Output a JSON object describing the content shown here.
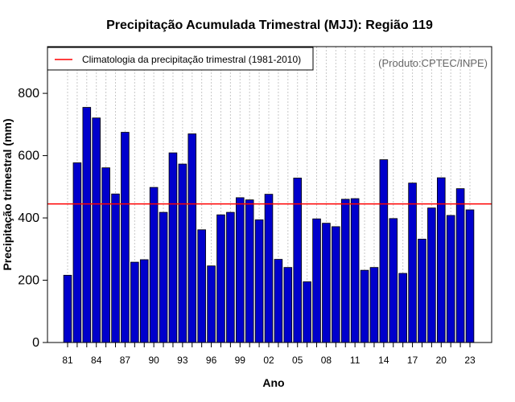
{
  "chart_data": {
    "type": "bar",
    "title": "Precipitação Acumulada Trimestral (MJJ): Região 119",
    "xlabel": "Ano",
    "ylabel": "Precipitação trimestral (mm)",
    "credit": "(Produto:CPTEC/INPE)",
    "legend": {
      "label": "Climatologia da precipitação trimestral (1981-2010)",
      "color": "#ff0000",
      "placement": "top-left"
    },
    "climatology": 445,
    "ylim": [
      0,
      950
    ],
    "yticks": [
      0,
      200,
      400,
      600,
      800
    ],
    "ytick_labels": [
      "0",
      "200",
      "400",
      "600",
      "800"
    ],
    "categories": [
      "1981",
      "1982",
      "1983",
      "1984",
      "1985",
      "1986",
      "1987",
      "1988",
      "1989",
      "1990",
      "1991",
      "1992",
      "1993",
      "1994",
      "1995",
      "1996",
      "1997",
      "1998",
      "1999",
      "2000",
      "2001",
      "2002",
      "2003",
      "2004",
      "2005",
      "2006",
      "2007",
      "2008",
      "2009",
      "2010",
      "2011",
      "2012",
      "2013",
      "2014",
      "2015",
      "2016",
      "2017",
      "2018",
      "2019",
      "2020",
      "2021",
      "2022",
      "2023"
    ],
    "xtick_every": 3,
    "xtick_labels": [
      "81",
      "84",
      "87",
      "90",
      "93",
      "96",
      "99",
      "02",
      "05",
      "08",
      "11",
      "14",
      "17",
      "20",
      "23"
    ],
    "values": [
      216,
      577,
      755,
      721,
      561,
      477,
      675,
      258,
      266,
      498,
      418,
      609,
      573,
      670,
      362,
      246,
      410,
      418,
      465,
      458,
      394,
      476,
      267,
      241,
      528,
      195,
      397,
      383,
      372,
      460,
      462,
      232,
      241,
      587,
      398,
      222,
      512,
      332,
      432,
      529,
      408,
      494,
      426
    ],
    "bar_color": "#0000cc",
    "grid": "vertical-dotted"
  }
}
